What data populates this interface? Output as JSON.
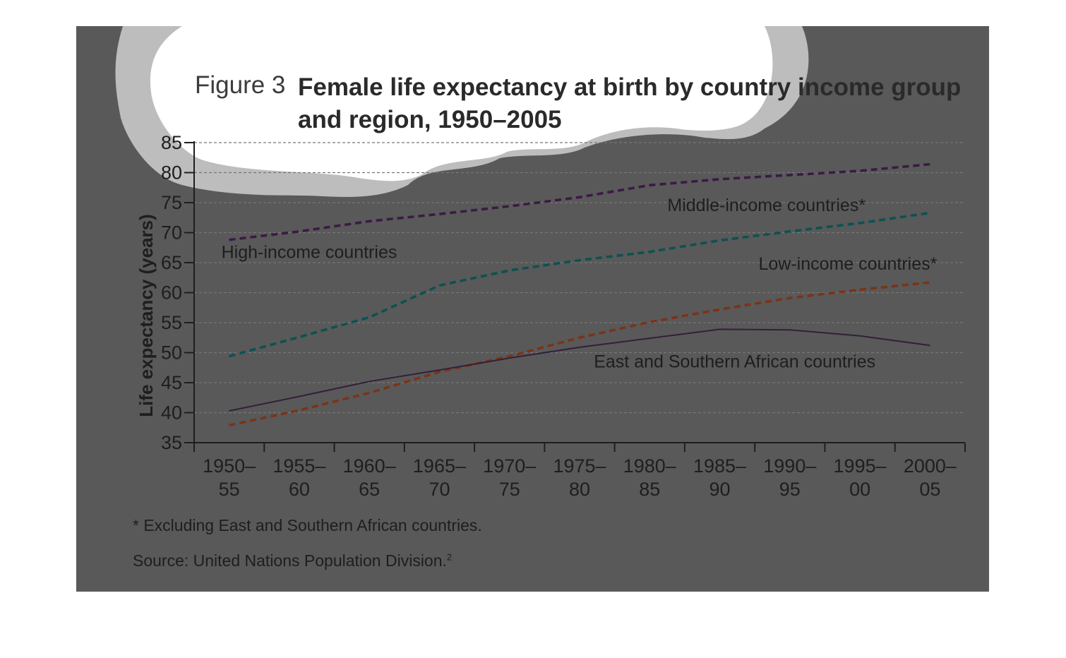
{
  "figure": {
    "label": "Figure 3",
    "title_line1": "Female life expectancy at birth by country income group",
    "title_line2": "and region, 1950–2005"
  },
  "colors": {
    "panel_background": "#595959",
    "cloud_outer": "#bdbdbd",
    "cloud_inner": "#ffffff",
    "high_income": "#3c1a45",
    "middle_income": "#0d5152",
    "low_income": "#7b3318",
    "east_southern_africa": "#341f3a"
  },
  "chart_data": {
    "type": "line",
    "ylabel": "Life expectancy (years)",
    "xlabel": "",
    "ylim": [
      35,
      85
    ],
    "yticks": [
      35,
      40,
      45,
      50,
      55,
      60,
      65,
      70,
      75,
      80,
      85
    ],
    "grid": true,
    "categories": [
      "1950–55",
      "1955–60",
      "1960–65",
      "1965–70",
      "1970–75",
      "1975–80",
      "1980–85",
      "1985–90",
      "1990–95",
      "1995–00",
      "2000–05"
    ],
    "x_tick_labels": [
      [
        "1950–",
        "55"
      ],
      [
        "1955–",
        "60"
      ],
      [
        "1960–",
        "65"
      ],
      [
        "1965–",
        "70"
      ],
      [
        "1970–",
        "75"
      ],
      [
        "1975–",
        "80"
      ],
      [
        "1980–",
        "85"
      ],
      [
        "1985–",
        "90"
      ],
      [
        "1990–",
        "95"
      ],
      [
        "1995–",
        "00"
      ],
      [
        "2000–",
        "05"
      ]
    ],
    "series": [
      {
        "name": "High-income countries",
        "style": "dashed",
        "color": "#3c1a45",
        "values": [
          68.8,
          70.2,
          71.9,
          73.1,
          74.4,
          75.9,
          77.9,
          78.9,
          79.6,
          80.3,
          81.4
        ]
      },
      {
        "name": "Middle-income countries*",
        "style": "dashed",
        "color": "#0d5152",
        "values": [
          49.4,
          52.6,
          55.9,
          61.2,
          63.7,
          65.4,
          66.8,
          68.7,
          70.2,
          71.6,
          73.3
        ]
      },
      {
        "name": "Low-income countries*",
        "style": "dashed",
        "color": "#7b3318",
        "values": [
          37.9,
          40.4,
          43.3,
          46.8,
          49.4,
          52.5,
          55.1,
          57.2,
          59.1,
          60.5,
          61.7
        ]
      },
      {
        "name": "East and Southern African countries",
        "style": "solid",
        "color": "#341f3a",
        "values": [
          40.3,
          42.7,
          45.2,
          47.1,
          49.1,
          50.9,
          52.4,
          53.9,
          53.8,
          52.8,
          51.2
        ]
      }
    ],
    "footnote": "* Excluding East and Southern African countries.",
    "source_text": "Source: United Nations Population Division.",
    "source_superscript": "2"
  }
}
